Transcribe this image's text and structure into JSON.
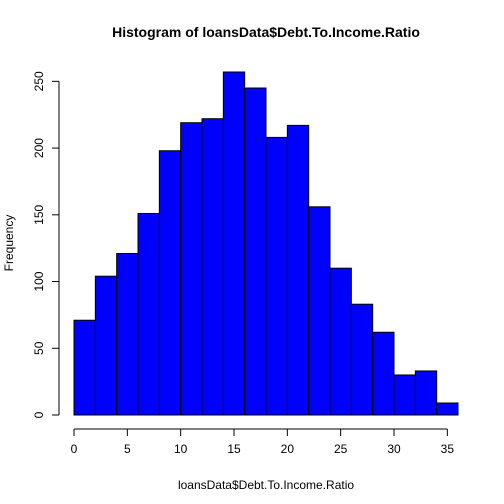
{
  "chart_data": {
    "type": "bar",
    "title": "Histogram of loansData$Debt.To.Income.Ratio",
    "xlabel": "loansData$Debt.To.Income.Ratio",
    "ylabel": "Frequency",
    "bin_edges": [
      0,
      2,
      4,
      6,
      8,
      10,
      12,
      14,
      16,
      18,
      20,
      22,
      24,
      26,
      28,
      30,
      32,
      34,
      36
    ],
    "values": [
      71,
      104,
      121,
      151,
      198,
      219,
      222,
      257,
      245,
      208,
      217,
      156,
      110,
      83,
      62,
      30,
      33,
      9
    ],
    "xlim": [
      0,
      36
    ],
    "ylim": [
      0,
      257
    ],
    "x_ticks": [
      0,
      5,
      10,
      15,
      20,
      25,
      30,
      35
    ],
    "y_ticks": [
      0,
      50,
      100,
      150,
      200,
      250
    ],
    "grid": false,
    "legend": "none",
    "bar_fill": "#0000ff",
    "bar_stroke": "#000000"
  }
}
